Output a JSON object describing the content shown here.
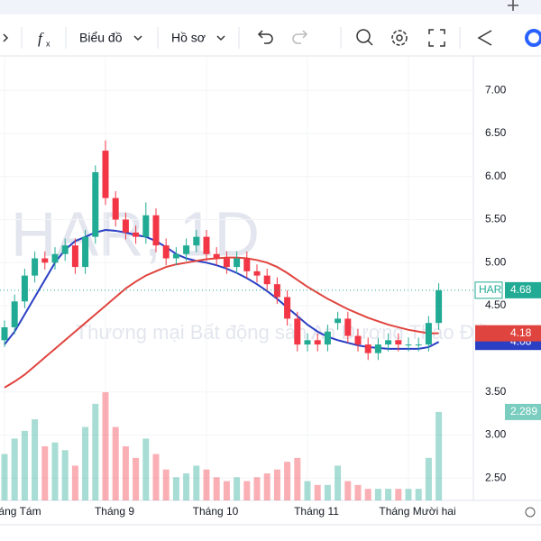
{
  "toolbar": {
    "chart_menu": "Biểu đồ",
    "profile_menu": "Hồ sơ"
  },
  "chart_data": {
    "type": "candlestick",
    "symbol_watermark": "HAR, 1D",
    "name_watermark": "Thương mại Bất động sản An Dương Thảo Điền",
    "symbol": "HAR",
    "categories": [
      "Tháng Tám",
      null,
      null,
      null,
      null,
      null,
      null,
      null,
      null,
      null,
      "Tháng 9",
      null,
      null,
      null,
      null,
      null,
      null,
      null,
      null,
      null,
      "Tháng 10",
      null,
      null,
      null,
      null,
      null,
      null,
      null,
      null,
      null,
      "Tháng 11",
      null,
      null,
      null,
      null,
      null,
      null,
      null,
      null,
      null,
      "Tháng Mười hai",
      null,
      null,
      null
    ],
    "open": [
      4.1,
      4.25,
      4.55,
      4.85,
      5.05,
      5.0,
      5.1,
      5.2,
      4.95,
      5.3,
      6.3,
      5.75,
      5.5,
      5.35,
      5.3,
      5.55,
      5.2,
      5.05,
      5.1,
      5.2,
      5.3,
      5.1,
      5.05,
      4.95,
      5.05,
      4.9,
      4.85,
      4.75,
      4.6,
      4.35,
      4.05,
      4.1,
      4.05,
      4.3,
      4.35,
      4.15,
      4.05,
      3.95,
      4.05,
      4.1,
      4.05,
      4.05,
      4.05,
      4.3
    ],
    "high": [
      4.33,
      4.63,
      4.93,
      5.13,
      5.13,
      5.18,
      5.28,
      5.28,
      5.38,
      6.13,
      6.42,
      5.83,
      5.58,
      5.43,
      5.7,
      5.63,
      5.28,
      5.18,
      5.28,
      5.38,
      5.38,
      5.18,
      5.13,
      5.13,
      5.13,
      4.98,
      4.93,
      4.83,
      4.68,
      4.43,
      4.18,
      4.18,
      4.28,
      4.43,
      4.43,
      4.23,
      4.13,
      4.13,
      4.18,
      4.18,
      4.13,
      4.13,
      4.38,
      4.76
    ],
    "low": [
      4.02,
      4.17,
      4.47,
      4.77,
      4.92,
      4.92,
      5.02,
      4.87,
      4.87,
      5.22,
      5.67,
      5.42,
      5.27,
      5.22,
      5.22,
      5.12,
      4.97,
      4.97,
      5.02,
      5.12,
      5.02,
      4.97,
      4.87,
      4.87,
      4.82,
      4.77,
      4.67,
      4.52,
      4.27,
      3.97,
      3.97,
      3.97,
      3.97,
      4.22,
      4.07,
      3.97,
      3.87,
      3.87,
      3.97,
      3.97,
      3.97,
      3.97,
      3.97,
      4.22
    ],
    "close": [
      4.25,
      4.55,
      4.85,
      5.05,
      5.0,
      5.1,
      5.2,
      4.95,
      5.3,
      6.05,
      5.75,
      5.5,
      5.35,
      5.3,
      5.55,
      5.2,
      5.05,
      5.1,
      5.2,
      5.3,
      5.1,
      5.05,
      4.95,
      5.05,
      4.9,
      4.85,
      4.75,
      4.6,
      4.35,
      4.05,
      4.1,
      4.05,
      4.2,
      4.35,
      4.15,
      4.05,
      3.95,
      4.05,
      4.1,
      4.05,
      4.05,
      4.05,
      4.3,
      4.68
    ],
    "volume": [
      1.2,
      1.6,
      1.8,
      2.1,
      1.4,
      1.5,
      1.3,
      0.9,
      1.9,
      2.5,
      2.8,
      1.9,
      1.4,
      1.1,
      1.6,
      1.2,
      0.8,
      0.6,
      0.7,
      0.9,
      0.8,
      0.6,
      0.5,
      0.6,
      0.5,
      0.6,
      0.7,
      0.8,
      1.0,
      1.1,
      0.5,
      0.4,
      0.4,
      0.9,
      0.5,
      0.4,
      0.3,
      0.3,
      0.3,
      0.3,
      0.3,
      0.3,
      1.1,
      2.289
    ],
    "up_color": "#22ab94",
    "down_color": "#f23645",
    "series": [
      {
        "color": "#2a3fc4",
        "values": [
          4.05,
          4.2,
          4.4,
          4.6,
          4.8,
          5.0,
          5.15,
          5.25,
          5.3,
          5.35,
          5.38,
          5.37,
          5.35,
          5.32,
          5.3,
          5.25,
          5.18,
          5.1,
          5.05,
          5.02,
          5.0,
          4.97,
          4.93,
          4.88,
          4.82,
          4.75,
          4.67,
          4.58,
          4.48,
          4.38,
          4.28,
          4.2,
          4.14,
          4.1,
          4.07,
          4.04,
          4.02,
          4.01,
          4.0,
          4.0,
          4.0,
          4.0,
          4.02,
          4.08
        ]
      },
      {
        "color": "#e0443e",
        "values": [
          3.55,
          3.62,
          3.7,
          3.8,
          3.9,
          4.0,
          4.1,
          4.2,
          4.3,
          4.4,
          4.5,
          4.6,
          4.7,
          4.78,
          4.85,
          4.9,
          4.95,
          4.98,
          5.0,
          5.02,
          5.04,
          5.05,
          5.06,
          5.06,
          5.05,
          5.03,
          5.0,
          4.95,
          4.88,
          4.8,
          4.72,
          4.65,
          4.58,
          4.52,
          4.46,
          4.41,
          4.36,
          4.32,
          4.28,
          4.25,
          4.22,
          4.2,
          4.18,
          4.18
        ]
      }
    ],
    "ylim": [
      2.24,
      7.4
    ],
    "yticks": [
      {
        "value": 7,
        "label": "7.00"
      },
      {
        "value": 6.5,
        "label": "6.50"
      },
      {
        "value": 6,
        "label": "6.00"
      },
      {
        "value": 5.5,
        "label": "5.50"
      },
      {
        "value": 5,
        "label": "5.00"
      },
      {
        "value": 4.5,
        "label": "4.50"
      },
      {
        "value": 3.5,
        "label": "3.50"
      },
      {
        "value": 3,
        "label": "3.00"
      },
      {
        "value": 2.5,
        "label": "2.50"
      }
    ],
    "grid": true
  }
}
